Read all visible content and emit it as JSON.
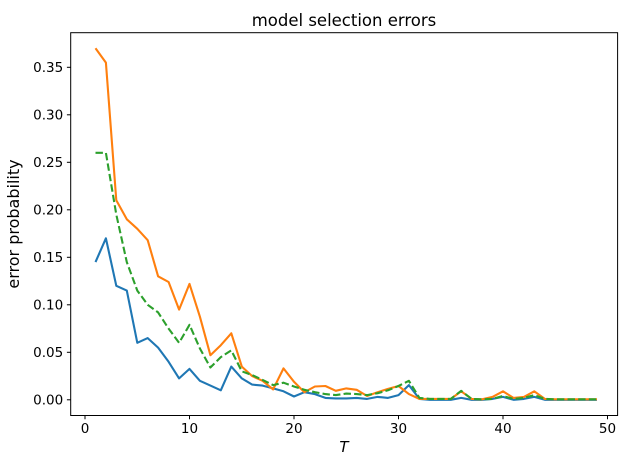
{
  "chart_data": {
    "type": "line",
    "title": "model selection errors",
    "xlabel": "T",
    "ylabel": "error probability",
    "grid": false,
    "legend": null,
    "xlim": [
      -1.4,
      51
    ],
    "ylim": [
      -0.017,
      0.387
    ],
    "x_ticks": [
      0,
      10,
      20,
      30,
      40,
      50
    ],
    "y_ticks": [
      "0.00",
      "0.05",
      "0.10",
      "0.15",
      "0.20",
      "0.25",
      "0.30",
      "0.35"
    ],
    "x": [
      1,
      2,
      3,
      4,
      5,
      6,
      7,
      8,
      9,
      10,
      11,
      12,
      13,
      14,
      15,
      16,
      17,
      18,
      19,
      20,
      21,
      22,
      23,
      24,
      25,
      26,
      27,
      28,
      29,
      30,
      31,
      32,
      33,
      34,
      35,
      36,
      37,
      38,
      39,
      40,
      41,
      42,
      43,
      44,
      45,
      46,
      47,
      48,
      49
    ],
    "series": [
      {
        "name": "blue-solid",
        "color": "#1f77b4",
        "style": "solid",
        "values": [
          0.145,
          0.17,
          0.12,
          0.115,
          0.06,
          0.065,
          0.055,
          0.04,
          0.0225,
          0.0325,
          0.02,
          0.015,
          0.01,
          0.035,
          0.0225,
          0.016,
          0.015,
          0.012,
          0.009,
          0.0035,
          0.008,
          0.006,
          0.002,
          0.0015,
          0.0015,
          0.002,
          0.001,
          0.003,
          0.002,
          0.005,
          0.0155,
          0.001,
          0,
          0,
          0,
          0.002,
          0,
          0,
          0.001,
          0.003,
          0,
          0.001,
          0.003,
          0,
          0,
          0,
          0,
          0,
          0
        ]
      },
      {
        "name": "orange-solid",
        "color": "#ff7f0e",
        "style": "solid",
        "values": [
          0.37,
          0.355,
          0.21,
          0.19,
          0.18,
          0.168,
          0.13,
          0.124,
          0.095,
          0.122,
          0.0875,
          0.047,
          0.0575,
          0.07,
          0.035,
          0.025,
          0.02,
          0.011,
          0.033,
          0.019,
          0.008,
          0.014,
          0.0145,
          0.0095,
          0.012,
          0.0105,
          0.004,
          0.008,
          0.0115,
          0.0145,
          0.006,
          0.001,
          0.001,
          0.001,
          0.001,
          0.009,
          0.001,
          0.0005,
          0.003,
          0.009,
          0.002,
          0.003,
          0.009,
          0.001,
          0.0005,
          0.0005,
          0.0005,
          0.0005,
          0.0005
        ]
      },
      {
        "name": "green-dashed",
        "color": "#2ca02c",
        "style": "dashed",
        "values": [
          0.26,
          0.26,
          0.195,
          0.145,
          0.115,
          0.1,
          0.092,
          0.075,
          0.06,
          0.079,
          0.054,
          0.034,
          0.045,
          0.052,
          0.03,
          0.026,
          0.021,
          0.0155,
          0.018,
          0.014,
          0.0105,
          0.008,
          0.006,
          0.005,
          0.0065,
          0.006,
          0.005,
          0.007,
          0.01,
          0.0145,
          0.02,
          0.002,
          0.001,
          0.001,
          0.001,
          0.0095,
          0.001,
          0.0005,
          0.001,
          0.004,
          0.001,
          0.002,
          0.005,
          0.001,
          0.0005,
          0.0005,
          0.0005,
          0.0005,
          0.0005
        ]
      }
    ]
  }
}
